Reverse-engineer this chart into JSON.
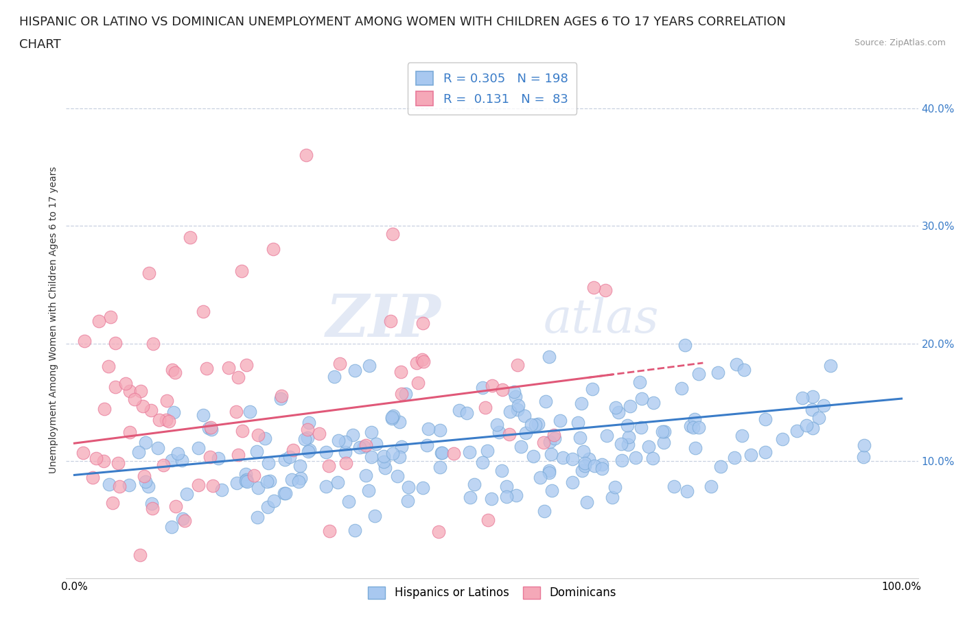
{
  "title_line1": "HISPANIC OR LATINO VS DOMINICAN UNEMPLOYMENT AMONG WOMEN WITH CHILDREN AGES 6 TO 17 YEARS CORRELATION",
  "title_line2": "CHART",
  "source": "Source: ZipAtlas.com",
  "ylabel": "Unemployment Among Women with Children Ages 6 to 17 years",
  "xlim": [
    -0.01,
    1.02
  ],
  "ylim": [
    0.0,
    0.44
  ],
  "xtick_labels": [
    "0.0%",
    "",
    "",
    "",
    "",
    "",
    "",
    "",
    "",
    "",
    "100.0%"
  ],
  "xtick_vals": [
    0.0,
    0.1,
    0.2,
    0.3,
    0.4,
    0.5,
    0.6,
    0.7,
    0.8,
    0.9,
    1.0
  ],
  "ytick_labels": [
    "10.0%",
    "20.0%",
    "30.0%",
    "40.0%"
  ],
  "ytick_vals": [
    0.1,
    0.2,
    0.3,
    0.4
  ],
  "legend_labels": [
    "Hispanics or Latinos",
    "Dominicans"
  ],
  "blue_color": "#a8c8f0",
  "pink_color": "#f5a8b8",
  "blue_edge_color": "#7aaad8",
  "pink_edge_color": "#e87898",
  "blue_line_color": "#3a7cc8",
  "pink_line_color": "#e05878",
  "R_blue": 0.305,
  "N_blue": 198,
  "R_pink": 0.131,
  "N_pink": 83,
  "watermark_zip": "ZIP",
  "watermark_atlas": "atlas",
  "background_color": "#ffffff",
  "grid_color": "#c8d0e0",
  "title_fontsize": 13,
  "legend_fontsize": 12,
  "axis_label_fontsize": 10,
  "tick_fontsize": 11,
  "seed_blue": 42,
  "seed_pink": 99
}
